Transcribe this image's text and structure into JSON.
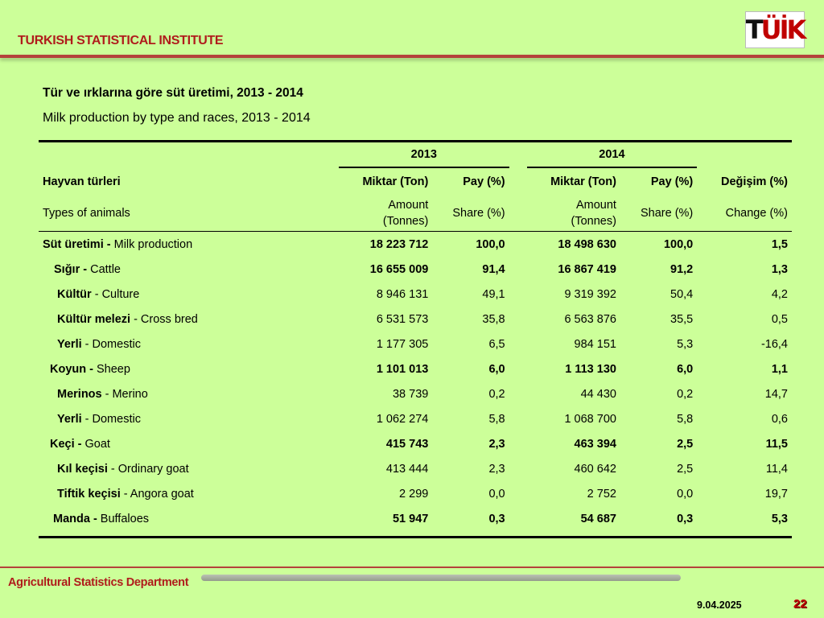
{
  "header": {
    "org_title": "TURKISH STATISTICAL INSTITUTE",
    "logo_text_a": "T",
    "logo_text_b": "ÜİK",
    "logo_icon": "tuik-logo-icon"
  },
  "table": {
    "title_tr": "Tür ve ırklarına göre süt üretimi, 2013 - 2014",
    "title_en": "Milk production by type and races, 2013 - 2014",
    "years": [
      "2013",
      "2014"
    ],
    "col_label_tr": "Hayvan türleri",
    "col_label_en": "Types of animals",
    "amount_tr": "Miktar (Ton)",
    "share_tr": "Pay (%)",
    "amount_en_1": "Amount",
    "amount_en_2": "(Tonnes)",
    "share_en": "Share (%)",
    "change_tr": "Değişim (%)",
    "change_en": "Change (%)",
    "rows": [
      {
        "tr": "Süt üretimi -",
        "en": " Milk production",
        "a13": "18 223 712",
        "s13": "100,0",
        "a14": "18 498 630",
        "s14": "100,0",
        "ch": "1,5"
      },
      {
        "tr": "Sığır -",
        "en": " Cattle",
        "a13": "16 655 009",
        "s13": "91,4",
        "a14": "16 867 419",
        "s14": "91,2",
        "ch": "1,3"
      },
      {
        "tr": "Kültür",
        "en": " - Culture",
        "a13": "8 946 131",
        "s13": "49,1",
        "a14": "9 319 392",
        "s14": "50,4",
        "ch": "4,2"
      },
      {
        "tr": "Kültür melezi",
        "en": " - Cross bred",
        "a13": "6 531 573",
        "s13": "35,8",
        "a14": "6 563 876",
        "s14": "35,5",
        "ch": "0,5"
      },
      {
        "tr": "Yerli",
        "en": " - Domestic",
        "a13": "1 177 305",
        "s13": "6,5",
        "a14": "984 151",
        "s14": "5,3",
        "ch": "-16,4"
      },
      {
        "tr": "Koyun -",
        "en": " Sheep",
        "a13": "1 101 013",
        "s13": "6,0",
        "a14": "1 113 130",
        "s14": "6,0",
        "ch": "1,1"
      },
      {
        "tr": "Merinos",
        "en": " - Merino",
        "a13": "38 739",
        "s13": "0,2",
        "a14": "44 430",
        "s14": "0,2",
        "ch": "14,7"
      },
      {
        "tr": "Yerli",
        "en": " - Domestic",
        "a13": "1 062 274",
        "s13": "5,8",
        "a14": "1 068 700",
        "s14": "5,8",
        "ch": "0,6"
      },
      {
        "tr": "Keçi -",
        "en": " Goat",
        "a13": "415 743",
        "s13": "2,3",
        "a14": "463 394",
        "s14": "2,5",
        "ch": "11,5"
      },
      {
        "tr": "Kıl keçisi",
        "en": " - Ordinary goat",
        "a13": "413 444",
        "s13": "2,3",
        "a14": "460 642",
        "s14": "2,5",
        "ch": "11,4"
      },
      {
        "tr": "Tiftik keçisi",
        "en": " - Angora goat",
        "a13": "2 299",
        "s13": "0,0",
        "a14": "2 752",
        "s14": "0,0",
        "ch": "19,7"
      },
      {
        "tr": "Manda -",
        "en": " Buffaloes",
        "a13": "51 947",
        "s13": "0,3",
        "a14": "54 687",
        "s14": "0,3",
        "ch": "5,3"
      }
    ]
  },
  "footer": {
    "department": "Agricultural Statistics Department",
    "date": "9.04.2025",
    "page_number": "22"
  }
}
